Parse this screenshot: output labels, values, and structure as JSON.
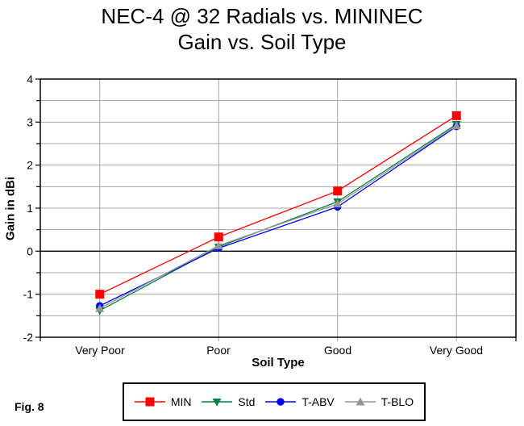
{
  "figure_label": "Fig. 8",
  "colors": {
    "grid": "#A6A6A6",
    "axis": "#000000",
    "background": "#FFFFFF"
  },
  "chart_data": {
    "type": "line",
    "title": "NEC-4 @ 32 Radials vs. MININEC",
    "subtitle": "Gain vs. Soil Type",
    "xlabel": "Soil Type",
    "ylabel": "Gain in dBi",
    "categories": [
      "Very Poor",
      "Poor",
      "Good",
      "Very Good"
    ],
    "series": [
      {
        "name": "MIN",
        "color": "#FF0000",
        "marker": "square",
        "values": [
          -1.0,
          0.33,
          1.4,
          3.15
        ]
      },
      {
        "name": "Std",
        "color": "#008040",
        "marker": "triangle-down",
        "values": [
          -1.38,
          0.1,
          1.15,
          2.95
        ]
      },
      {
        "name": "T-ABV",
        "color": "#0000FF",
        "marker": "circle",
        "values": [
          -1.27,
          0.07,
          1.03,
          2.9
        ]
      },
      {
        "name": "T-BLO",
        "color": "#969696",
        "marker": "triangle-up",
        "values": [
          -1.33,
          0.13,
          1.1,
          2.92
        ]
      }
    ],
    "ylim": [
      -2,
      4
    ],
    "ytick_step": 1,
    "grid_step": 0.5,
    "grid": true,
    "legend_position": "bottom"
  }
}
